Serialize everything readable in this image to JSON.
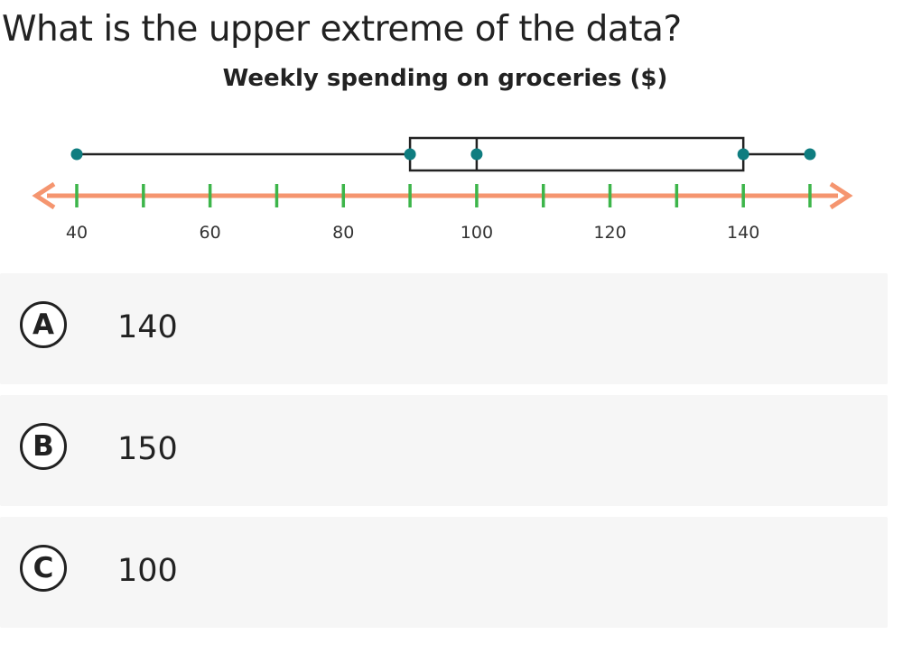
{
  "question": "What is the upper extreme of the data?",
  "chart_data": {
    "type": "box",
    "title": "Weekly spending on groceries ($)",
    "xlim": [
      40,
      150
    ],
    "tick_step": 10,
    "tick_labels": [
      40,
      60,
      80,
      100,
      120,
      140
    ],
    "box": {
      "min": 40,
      "q1": 90,
      "median": 100,
      "q3": 140,
      "max": 150
    },
    "colors": {
      "axis": "#f5956f",
      "ticks": "#3db54a",
      "points": "#0f7d80",
      "box": "#222222"
    }
  },
  "options": [
    {
      "letter": "A",
      "value": "140"
    },
    {
      "letter": "B",
      "value": "150"
    },
    {
      "letter": "C",
      "value": "100"
    }
  ]
}
